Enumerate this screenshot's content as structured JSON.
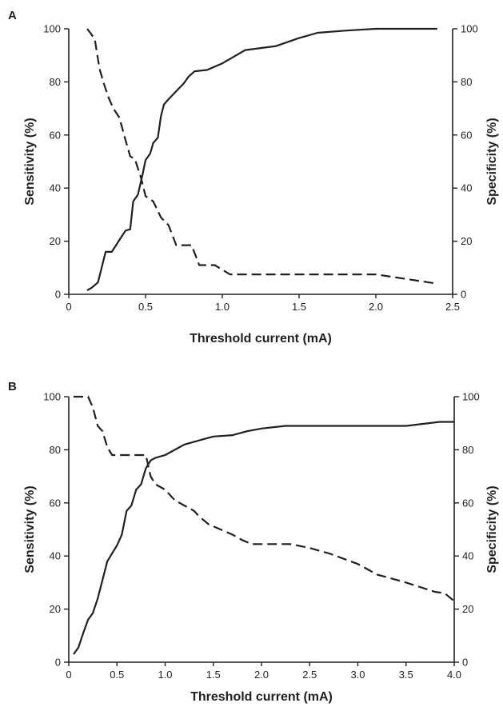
{
  "chart_data": [
    {
      "panel_label": "A",
      "type": "line",
      "xlabel": "Threshold current (mA)",
      "ylabel": "Sensitivity (%)",
      "y2label": "Specificity (%)",
      "xlim": [
        0,
        2.5
      ],
      "ylim": [
        0,
        100
      ],
      "y2lim": [
        0,
        100
      ],
      "xticks": [
        "0",
        "0.5",
        "1.0",
        "1.5",
        "2.0",
        "2.5"
      ],
      "yticks": [
        "0",
        "20",
        "40",
        "60",
        "80",
        "100"
      ],
      "y2ticks": [
        "0",
        "20",
        "40",
        "60",
        "80",
        "100"
      ],
      "grid": false,
      "series": [
        {
          "style": "solid",
          "axis": "left",
          "x": [
            0.12,
            0.15,
            0.19,
            0.24,
            0.28,
            0.33,
            0.37,
            0.4,
            0.42,
            0.45,
            0.48,
            0.5,
            0.53,
            0.55,
            0.58,
            0.6,
            0.62,
            0.65,
            0.7,
            0.75,
            0.78,
            0.82,
            0.9,
            1.0,
            1.15,
            1.35,
            1.5,
            1.62,
            1.8,
            2.0,
            2.2,
            2.4
          ],
          "y": [
            1.5,
            2.5,
            4.5,
            16,
            16,
            20.5,
            24,
            24.5,
            35,
            37.5,
            45,
            50.5,
            53,
            57,
            59,
            67,
            71.5,
            73.5,
            76.5,
            79.5,
            82,
            84,
            84.5,
            87,
            92,
            93.5,
            96.5,
            98.5,
            99.3,
            100,
            100,
            100
          ]
        },
        {
          "style": "dashed",
          "axis": "right",
          "x": [
            0.12,
            0.14,
            0.17,
            0.2,
            0.23,
            0.26,
            0.29,
            0.33,
            0.37,
            0.4,
            0.43,
            0.47,
            0.5,
            0.55,
            0.6,
            0.65,
            0.7,
            0.75,
            0.8,
            0.85,
            0.95,
            1.05,
            1.2,
            1.6,
            2.0,
            2.4
          ],
          "y": [
            100,
            98.5,
            96,
            85,
            79,
            74,
            70,
            66.5,
            58,
            52,
            51,
            44,
            37,
            35,
            29,
            26,
            18.5,
            18.5,
            18.5,
            11,
            11,
            7.5,
            7.5,
            7.5,
            7.5,
            4
          ]
        }
      ]
    },
    {
      "panel_label": "B",
      "type": "line",
      "xlabel": "Threshold current (mA)",
      "ylabel": "Sensitivity (%)",
      "y2label": "Specificity (%)",
      "xlim": [
        0,
        4.0
      ],
      "ylim": [
        0,
        100
      ],
      "y2lim": [
        0,
        100
      ],
      "xticks": [
        "0",
        "0.5",
        "1.0",
        "1.5",
        "2.0",
        "2.5",
        "3.0",
        "3.5",
        "4.0"
      ],
      "yticks": [
        "0",
        "20",
        "40",
        "60",
        "80",
        "100"
      ],
      "y2ticks": [
        "0",
        "20",
        "40",
        "60",
        "80",
        "100"
      ],
      "grid": false,
      "series": [
        {
          "style": "solid",
          "axis": "left",
          "x": [
            0.05,
            0.1,
            0.15,
            0.2,
            0.25,
            0.3,
            0.35,
            0.4,
            0.45,
            0.5,
            0.55,
            0.6,
            0.65,
            0.7,
            0.75,
            0.8,
            0.85,
            0.9,
            1.0,
            1.1,
            1.2,
            1.3,
            1.4,
            1.5,
            1.7,
            1.85,
            2.0,
            2.25,
            2.5,
            3.0,
            3.5,
            3.85,
            4.0
          ],
          "y": [
            3,
            5.5,
            11,
            16,
            18.5,
            24,
            31,
            38,
            41,
            44,
            48,
            57,
            59,
            65,
            67,
            73,
            76,
            77,
            78,
            80,
            82,
            83,
            84,
            85,
            85.5,
            87,
            88,
            89,
            89,
            89,
            89,
            90.5,
            90.5
          ]
        },
        {
          "style": "dashed",
          "axis": "right",
          "x": [
            0.05,
            0.15,
            0.2,
            0.25,
            0.3,
            0.35,
            0.4,
            0.45,
            0.55,
            0.8,
            0.85,
            0.9,
            1.0,
            1.1,
            1.2,
            1.3,
            1.35,
            1.45,
            1.7,
            1.8,
            1.9,
            2.3,
            2.5,
            2.7,
            3.0,
            3.2,
            3.5,
            3.8,
            3.9,
            4.0
          ],
          "y": [
            100,
            100,
            100,
            96,
            89,
            87,
            81,
            78,
            78,
            78,
            70,
            67,
            65,
            61,
            59,
            57,
            55,
            52,
            48,
            46,
            44.5,
            44.5,
            43,
            41,
            37,
            33,
            30,
            26.5,
            26,
            23
          ]
        }
      ]
    }
  ]
}
